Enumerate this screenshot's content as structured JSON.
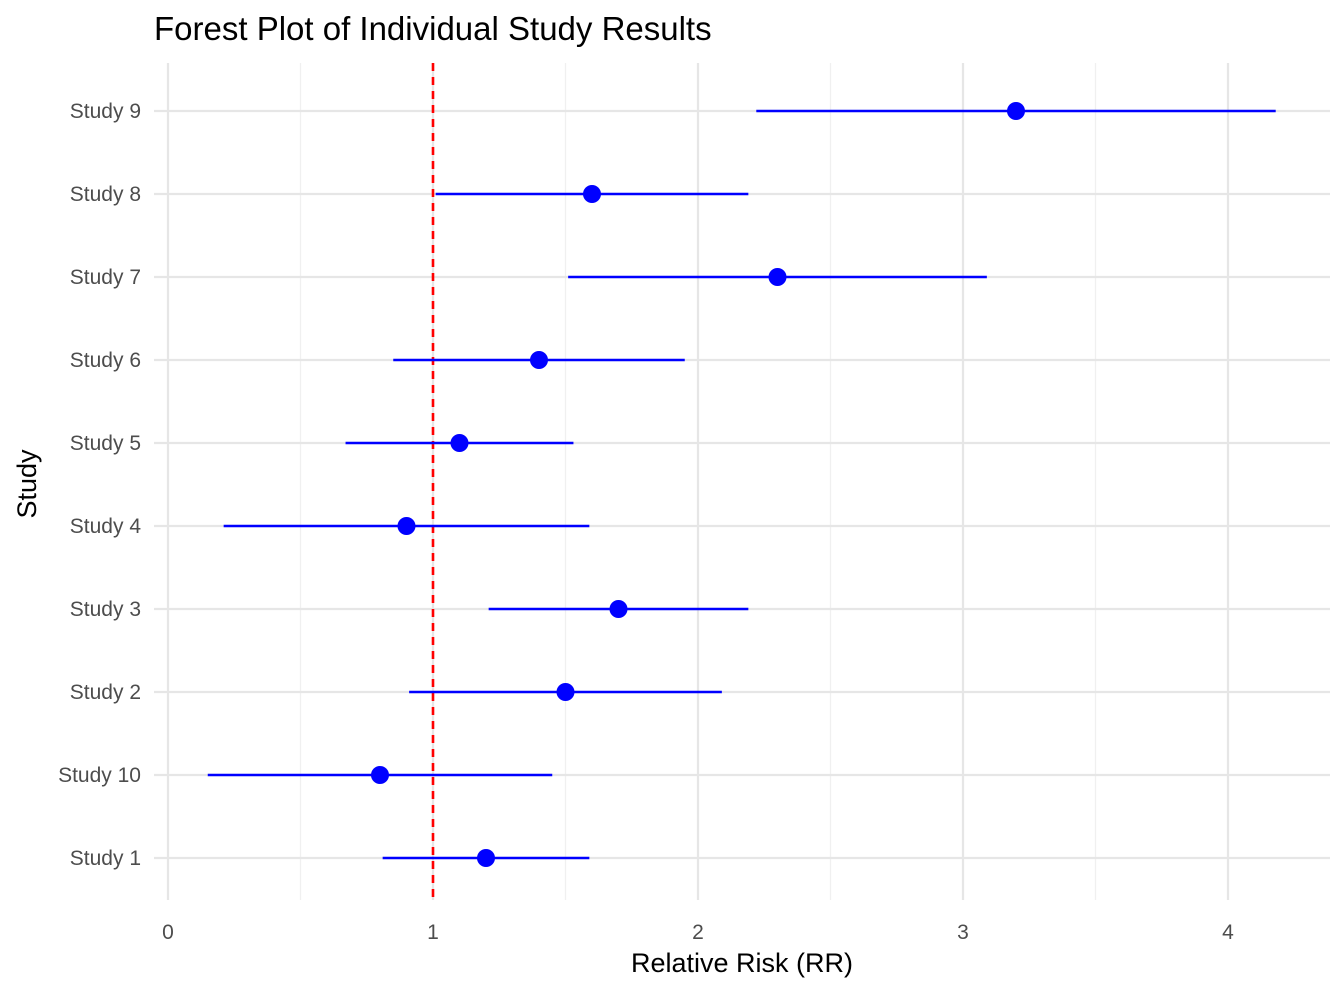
{
  "chart_data": {
    "type": "scatter",
    "subtype": "forest_plot",
    "title": "Forest Plot of Individual Study Results",
    "xlabel": "Relative Risk (RR)",
    "ylabel": "Study",
    "xlim": [
      0,
      4.3
    ],
    "x_ticks": [
      0,
      1,
      2,
      3,
      4
    ],
    "y_categories_top_to_bottom": [
      "Study 9",
      "Study 8",
      "Study 7",
      "Study 6",
      "Study 5",
      "Study 4",
      "Study 3",
      "Study 2",
      "Study 10",
      "Study 1"
    ],
    "reference_line": {
      "x": 1,
      "style": "dashed",
      "color": "#FF0000"
    },
    "series": [
      {
        "color": "#0000FF",
        "points": [
          {
            "study": "Study 9",
            "rr": 3.2,
            "lower": 2.22,
            "upper": 4.18
          },
          {
            "study": "Study 8",
            "rr": 1.6,
            "lower": 1.01,
            "upper": 2.19
          },
          {
            "study": "Study 7",
            "rr": 2.3,
            "lower": 1.51,
            "upper": 3.09
          },
          {
            "study": "Study 6",
            "rr": 1.4,
            "lower": 0.85,
            "upper": 1.95
          },
          {
            "study": "Study 5",
            "rr": 1.1,
            "lower": 0.67,
            "upper": 1.53
          },
          {
            "study": "Study 4",
            "rr": 0.9,
            "lower": 0.21,
            "upper": 1.59
          },
          {
            "study": "Study 3",
            "rr": 1.7,
            "lower": 1.21,
            "upper": 2.19
          },
          {
            "study": "Study 2",
            "rr": 1.5,
            "lower": 0.91,
            "upper": 2.09
          },
          {
            "study": "Study 10",
            "rr": 0.8,
            "lower": 0.15,
            "upper": 1.45
          },
          {
            "study": "Study 1",
            "rr": 1.2,
            "lower": 0.81,
            "upper": 1.59
          }
        ]
      }
    ],
    "grid": true,
    "legend": "none"
  }
}
